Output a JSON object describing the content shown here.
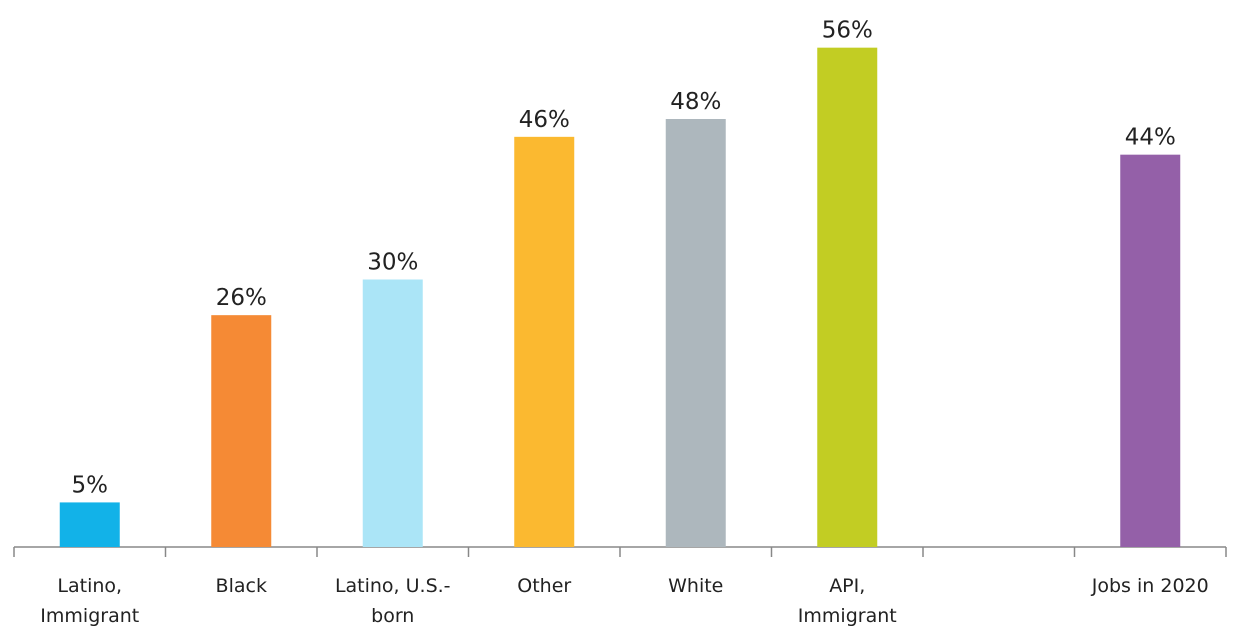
{
  "chart_data": {
    "type": "bar",
    "categories": [
      "Latino, Immigrant",
      "Black",
      "Latino, U.S.-born",
      "Other",
      "White",
      "API, Immigrant",
      null,
      "Jobs in 2020"
    ],
    "values": [
      5,
      26,
      30,
      46,
      48,
      56,
      null,
      44
    ],
    "value_labels": [
      "5%",
      "26%",
      "30%",
      "46%",
      "48%",
      "56%",
      null,
      "44%"
    ],
    "colors": [
      "#12b2e8",
      "#f58a35",
      "#abe5f7",
      "#fbb930",
      "#adb7bd",
      "#c2cd23",
      null,
      "#9460a8"
    ],
    "ylim": [
      0,
      60
    ]
  }
}
